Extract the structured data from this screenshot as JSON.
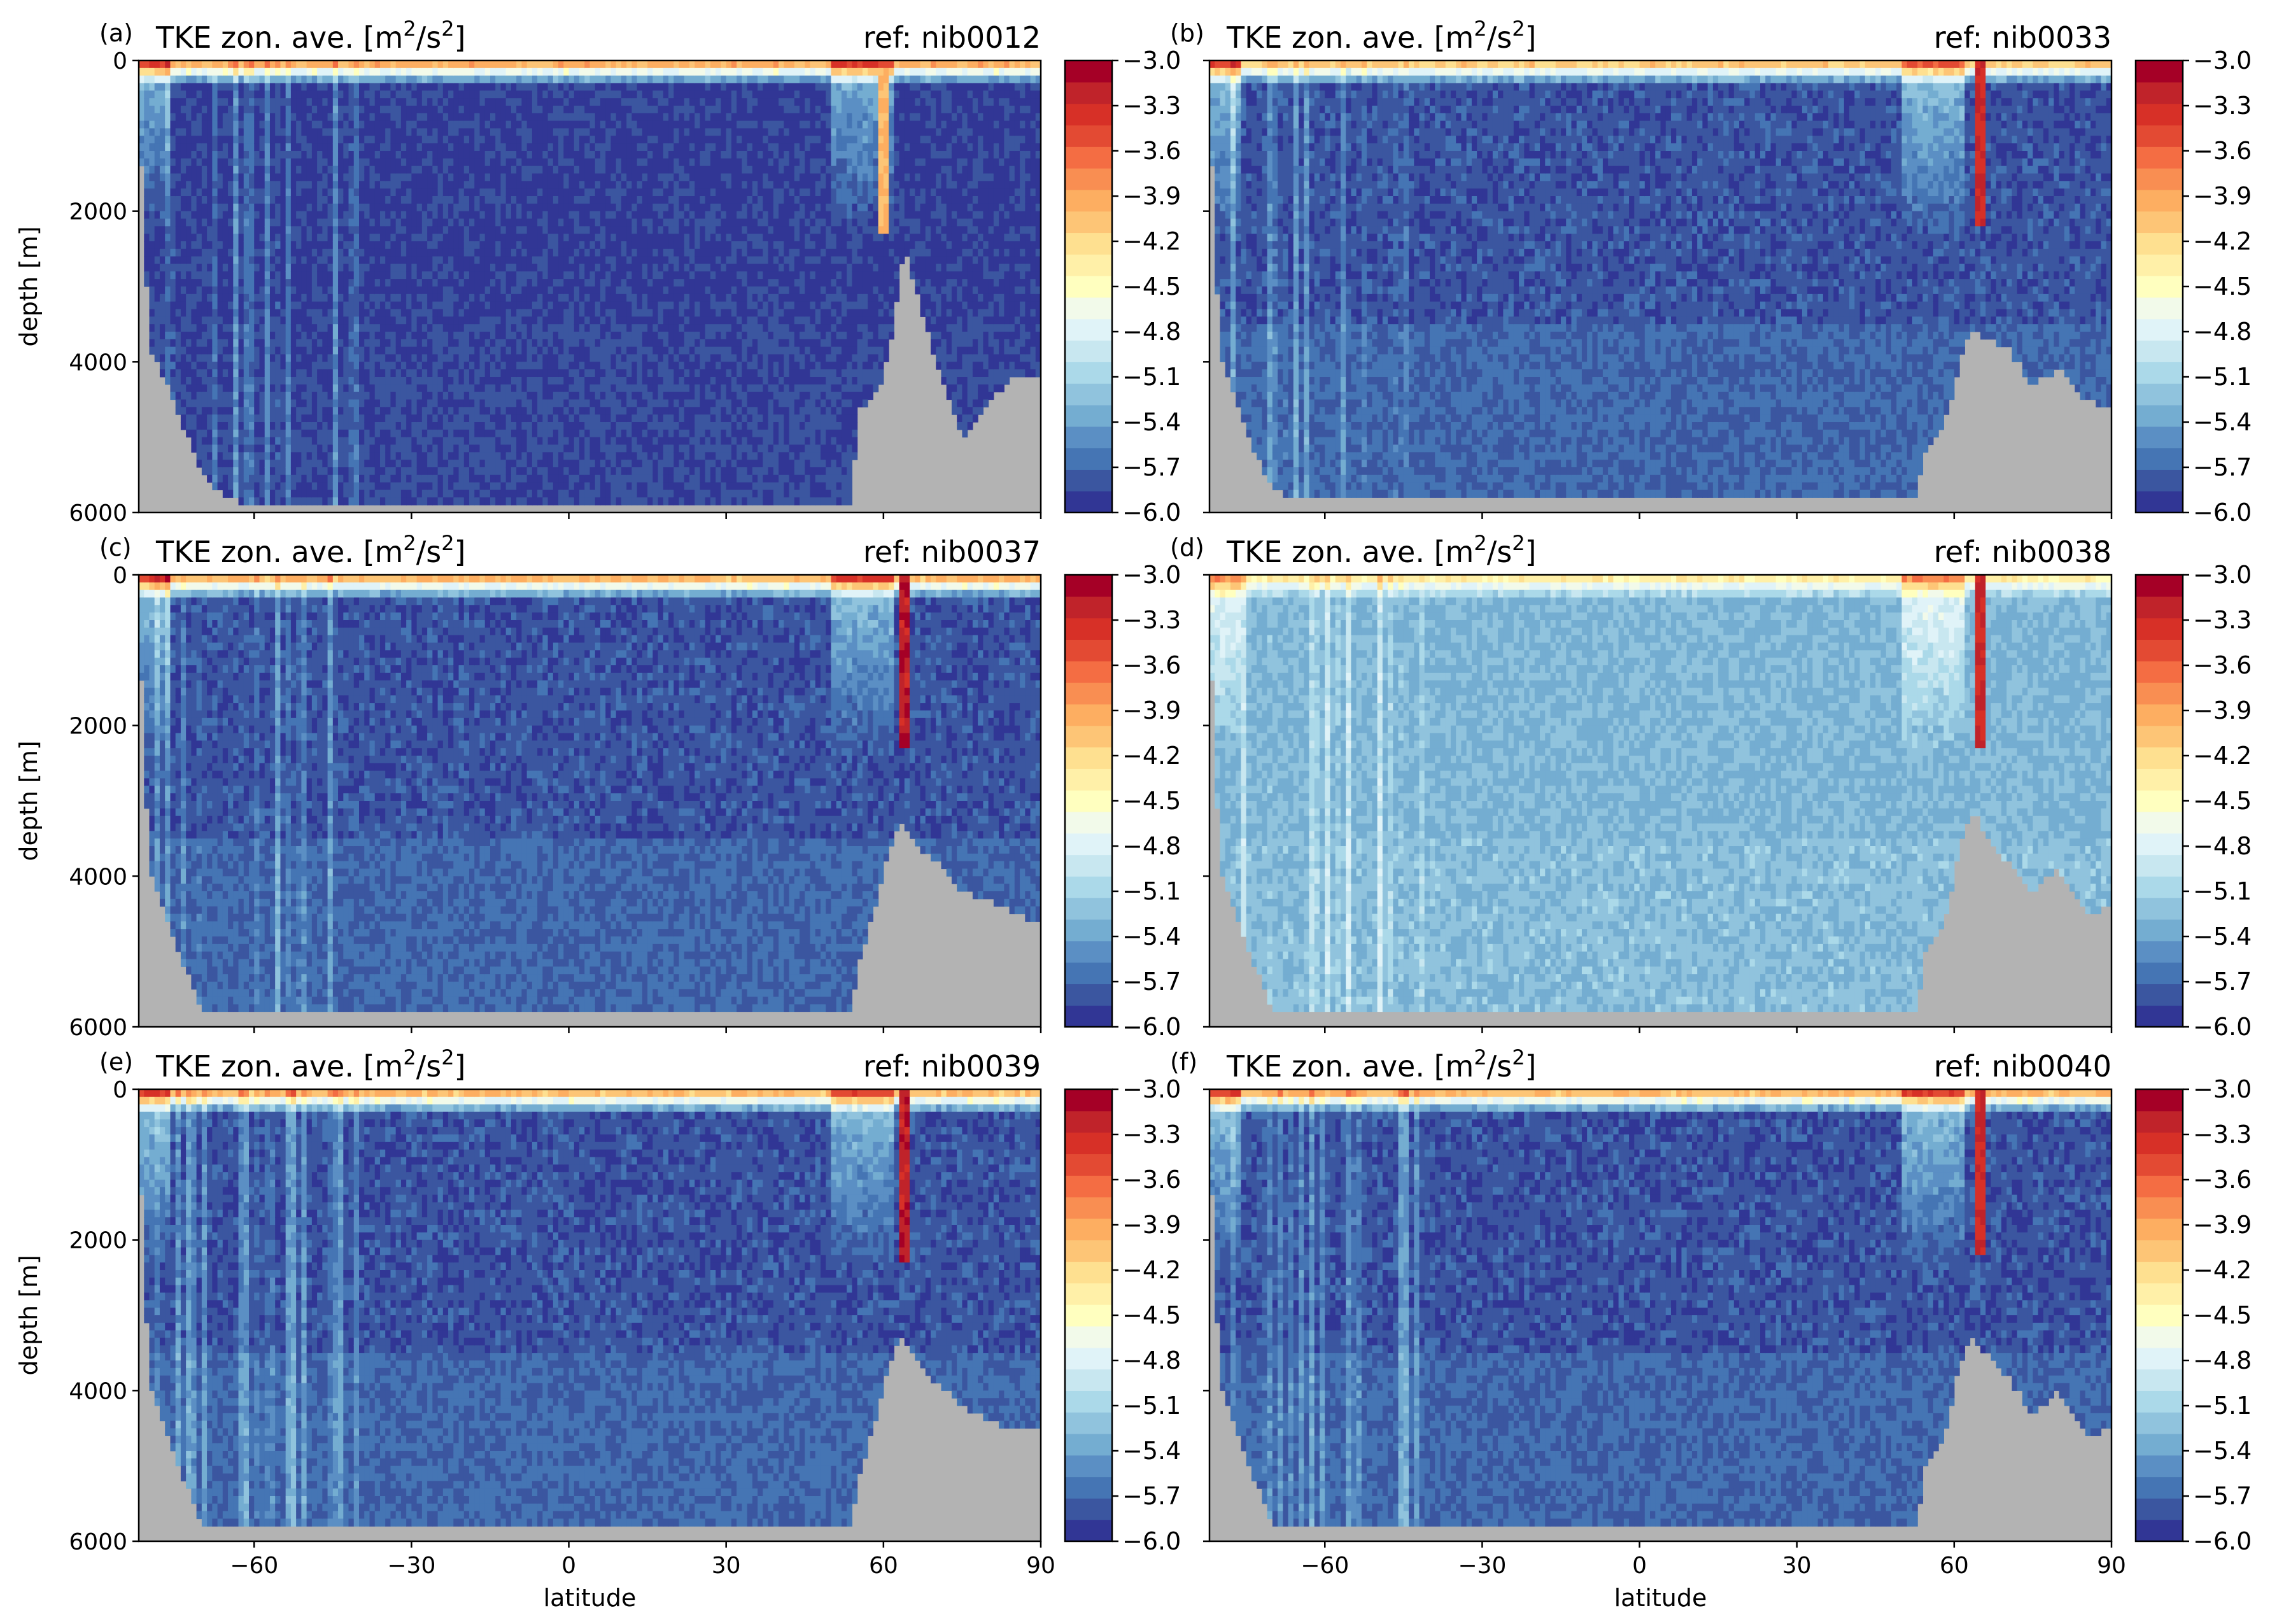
{
  "colors": {
    "land": "#b3b3b3",
    "frame": "#000000",
    "colormap": [
      "#313695",
      "#3b56a0",
      "#4575b4",
      "#5b8fc4",
      "#74add1",
      "#90c3dd",
      "#abd9e9",
      "#c8e7f0",
      "#e0f3f8",
      "#f2faea",
      "#ffffbf",
      "#fff0a8",
      "#fee090",
      "#fdc576",
      "#fdae61",
      "#f98e52",
      "#f46d43",
      "#e34a33",
      "#d73027",
      "#c0232a",
      "#a50026"
    ]
  },
  "chart_data": [
    {
      "type": "heatmap",
      "panel_letter": "(a)",
      "title": "TKE zon. ave. [m²/s²]",
      "reference": "ref: nib0012",
      "xlabel": "",
      "ylabel": "depth [m]",
      "xlim": [
        -82,
        90
      ],
      "ylim": [
        6000,
        0
      ],
      "xticks": [
        -60,
        -30,
        0,
        30,
        60,
        90
      ],
      "xtick_labels": [],
      "yticks": [
        0,
        2000,
        4000,
        6000
      ],
      "ytick_labels": [
        "0",
        "2000",
        "4000",
        "6000"
      ],
      "colorbar": {
        "range": [
          -6.0,
          -3.0
        ],
        "ticks": [
          "-3.0",
          "-3.3",
          "-3.6",
          "-3.9",
          "-4.2",
          "-4.5",
          "-4.8",
          "-5.1",
          "-5.4",
          "-5.7",
          "-6.0"
        ]
      },
      "interior_value": -5.9,
      "deep_value": -5.85,
      "surface_value": -3.6,
      "jet_latitude": 60,
      "jet_value": -4.0,
      "jet_bottom_depth": 2300,
      "bathymetry": {
        "latitudes": [
          -82,
          -80,
          -78,
          -76,
          -74,
          -72,
          -70,
          -65,
          -60,
          -50,
          -40,
          -20,
          0,
          20,
          40,
          54,
          55,
          58,
          60,
          62,
          64,
          66,
          70,
          75,
          80,
          85,
          90
        ],
        "depths": [
          600,
          3800,
          4100,
          4400,
          4800,
          5100,
          5500,
          5800,
          5900,
          5900,
          5900,
          5900,
          5900,
          5900,
          5900,
          5900,
          4600,
          4500,
          4200,
          3500,
          2400,
          3000,
          4000,
          5000,
          4500,
          4200,
          4200
        ]
      }
    },
    {
      "type": "heatmap",
      "panel_letter": "(b)",
      "title": "TKE zon. ave. [m²/s²]",
      "reference": "ref: nib0033",
      "xlabel": "",
      "ylabel": "",
      "xlim": [
        -82,
        90
      ],
      "ylim": [
        6000,
        0
      ],
      "xticks": [
        -60,
        -30,
        0,
        30,
        60,
        90
      ],
      "xtick_labels": [],
      "yticks": [
        0,
        2000,
        4000,
        6000
      ],
      "ytick_labels": [],
      "colorbar": {
        "range": [
          -6.0,
          -3.0
        ],
        "ticks": [
          "-3.0",
          "-3.3",
          "-3.6",
          "-3.9",
          "-4.2",
          "-4.5",
          "-4.8",
          "-5.1",
          "-5.4",
          "-5.7",
          "-6.0"
        ]
      },
      "interior_value": -5.8,
      "deep_value": -5.7,
      "surface_value": -3.8,
      "jet_latitude": 65,
      "jet_value": -3.3,
      "jet_bottom_depth": 2200,
      "bathymetry": {
        "latitudes": [
          -82,
          -80,
          -78,
          -76,
          -74,
          -72,
          -70,
          -65,
          -60,
          -50,
          -40,
          -20,
          0,
          20,
          40,
          53,
          54,
          58,
          60,
          62,
          64,
          66,
          70,
          75,
          80,
          85,
          90
        ],
        "depths": [
          600,
          3900,
          4300,
          4700,
          5100,
          5400,
          5700,
          5800,
          5800,
          5800,
          5800,
          5800,
          5800,
          5800,
          5800,
          5800,
          5200,
          4800,
          4400,
          3700,
          3500,
          3700,
          3800,
          4300,
          4100,
          4500,
          4600
        ]
      }
    },
    {
      "type": "heatmap",
      "panel_letter": "(c)",
      "title": "TKE zon. ave. [m²/s²]",
      "reference": "ref: nib0037",
      "xlabel": "",
      "ylabel": "depth [m]",
      "xlim": [
        -82,
        90
      ],
      "ylim": [
        6000,
        0
      ],
      "xticks": [
        -60,
        -30,
        0,
        30,
        60,
        90
      ],
      "xtick_labels": [],
      "yticks": [
        0,
        2000,
        4000,
        6000
      ],
      "ytick_labels": [
        "0",
        "2000",
        "4000",
        "6000"
      ],
      "colorbar": {
        "range": [
          -6.0,
          -3.0
        ],
        "ticks": [
          "-3.0",
          "-3.3",
          "-3.6",
          "-3.9",
          "-4.2",
          "-4.5",
          "-4.8",
          "-5.1",
          "-5.4",
          "-5.7",
          "-6.0"
        ]
      },
      "interior_value": -5.8,
      "deep_value": -5.7,
      "surface_value": -3.7,
      "jet_latitude": 64,
      "jet_value": -3.2,
      "jet_bottom_depth": 2300,
      "bathymetry": {
        "latitudes": [
          -82,
          -80,
          -78,
          -76,
          -74,
          -72,
          -70,
          -65,
          -60,
          -50,
          -40,
          -20,
          0,
          20,
          40,
          54,
          55,
          58,
          60,
          62,
          64,
          66,
          70,
          75,
          80,
          85,
          90
        ],
        "depths": [
          600,
          3900,
          4300,
          4700,
          5100,
          5400,
          5800,
          5800,
          5800,
          5800,
          5800,
          5800,
          5800,
          5800,
          5800,
          5800,
          5200,
          4500,
          4000,
          3400,
          3300,
          3600,
          3800,
          4200,
          4300,
          4500,
          4600
        ]
      }
    },
    {
      "type": "heatmap",
      "panel_letter": "(d)",
      "title": "TKE zon. ave. [m²/s²]",
      "reference": "ref: nib0038",
      "xlabel": "",
      "ylabel": "",
      "xlim": [
        -82,
        90
      ],
      "ylim": [
        6000,
        0
      ],
      "xticks": [
        -60,
        -30,
        0,
        30,
        60,
        90
      ],
      "xtick_labels": [],
      "yticks": [
        0,
        2000,
        4000,
        6000
      ],
      "ytick_labels": [],
      "colorbar": {
        "range": [
          -6.0,
          -3.0
        ],
        "ticks": [
          "-3.0",
          "-3.3",
          "-3.6",
          "-3.9",
          "-4.2",
          "-4.5",
          "-4.8",
          "-5.1",
          "-5.4",
          "-5.7",
          "-6.0"
        ]
      },
      "interior_value": -5.3,
      "deep_value": -5.25,
      "surface_value": -4.2,
      "jet_latitude": 65,
      "jet_value": -3.3,
      "jet_bottom_depth": 2300,
      "bathymetry": {
        "latitudes": [
          -82,
          -80,
          -78,
          -76,
          -74,
          -72,
          -70,
          -65,
          -60,
          -50,
          -40,
          -20,
          0,
          20,
          40,
          53,
          54,
          58,
          60,
          62,
          64,
          66,
          70,
          75,
          80,
          85,
          90
        ],
        "depths": [
          600,
          3900,
          4300,
          4700,
          5100,
          5400,
          5800,
          5800,
          5800,
          5800,
          5800,
          5800,
          5800,
          5800,
          5800,
          5800,
          5100,
          4600,
          4000,
          3300,
          3100,
          3500,
          3800,
          4200,
          3900,
          4500,
          4400
        ]
      }
    },
    {
      "type": "heatmap",
      "panel_letter": "(e)",
      "title": "TKE zon. ave. [m²/s²]",
      "reference": "ref: nib0039",
      "xlabel": "latitude",
      "ylabel": "depth [m]",
      "xlim": [
        -82,
        90
      ],
      "ylim": [
        6000,
        0
      ],
      "xticks": [
        -60,
        -30,
        0,
        30,
        60,
        90
      ],
      "xtick_labels": [
        "−60",
        "−30",
        "0",
        "30",
        "60",
        "90"
      ],
      "yticks": [
        0,
        2000,
        4000,
        6000
      ],
      "ytick_labels": [
        "0",
        "2000",
        "4000",
        "6000"
      ],
      "colorbar": {
        "range": [
          -6.0,
          -3.0
        ],
        "ticks": [
          "-3.0",
          "-3.3",
          "-3.6",
          "-3.9",
          "-4.2",
          "-4.5",
          "-4.8",
          "-5.1",
          "-5.4",
          "-5.7",
          "-6.0"
        ]
      },
      "interior_value": -5.8,
      "deep_value": -5.7,
      "surface_value": -3.7,
      "jet_latitude": 64,
      "jet_value": -3.2,
      "jet_bottom_depth": 2300,
      "bathymetry": {
        "latitudes": [
          -82,
          -80,
          -78,
          -76,
          -74,
          -72,
          -70,
          -65,
          -60,
          -50,
          -40,
          -20,
          0,
          20,
          40,
          54,
          55,
          58,
          60,
          62,
          64,
          66,
          70,
          75,
          80,
          85,
          90
        ],
        "depths": [
          600,
          3900,
          4300,
          4700,
          5100,
          5400,
          5800,
          5800,
          5800,
          5800,
          5800,
          5800,
          5800,
          5800,
          5800,
          5800,
          5200,
          4500,
          4000,
          3400,
          3300,
          3600,
          3900,
          4200,
          4400,
          4500,
          4500
        ]
      }
    },
    {
      "type": "heatmap",
      "panel_letter": "(f)",
      "title": "TKE zon. ave. [m²/s²]",
      "reference": "ref: nib0040",
      "xlabel": "latitude",
      "ylabel": "",
      "xlim": [
        -82,
        90
      ],
      "ylim": [
        6000,
        0
      ],
      "xticks": [
        -60,
        -30,
        0,
        30,
        60,
        90
      ],
      "xtick_labels": [
        "−60",
        "−30",
        "0",
        "30",
        "60",
        "90"
      ],
      "yticks": [
        0,
        2000,
        4000,
        6000
      ],
      "ytick_labels": [],
      "colorbar": {
        "range": [
          -6.0,
          -3.0
        ],
        "ticks": [
          "-3.0",
          "-3.3",
          "-3.6",
          "-3.9",
          "-4.2",
          "-4.5",
          "-4.8",
          "-5.1",
          "-5.4",
          "-5.7",
          "-6.0"
        ]
      },
      "interior_value": -5.8,
      "deep_value": -5.7,
      "surface_value": -3.7,
      "jet_latitude": 65,
      "jet_value": -3.3,
      "jet_bottom_depth": 2200,
      "bathymetry": {
        "latitudes": [
          -82,
          -80,
          -78,
          -76,
          -74,
          -72,
          -70,
          -65,
          -60,
          -50,
          -40,
          -20,
          0,
          20,
          40,
          53,
          54,
          58,
          60,
          62,
          64,
          66,
          70,
          75,
          80,
          85,
          90
        ],
        "depths": [
          600,
          3900,
          4300,
          4700,
          5100,
          5400,
          5800,
          5800,
          5800,
          5800,
          5800,
          5800,
          5800,
          5800,
          5800,
          5800,
          5100,
          4600,
          4000,
          3400,
          3300,
          3500,
          3800,
          4300,
          4000,
          4600,
          4500
        ]
      }
    }
  ]
}
